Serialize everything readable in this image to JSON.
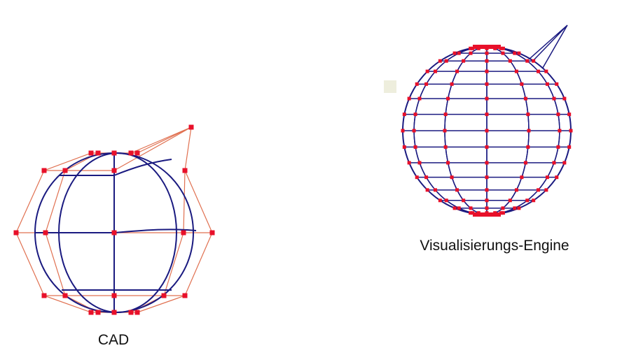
{
  "labels": {
    "left": "CAD",
    "right": "Visualisierungs-Engine"
  },
  "colors": {
    "wire": "#1a1a80",
    "control": "#e07050",
    "points": "#e8102a",
    "marker": "#eeeedd"
  }
}
